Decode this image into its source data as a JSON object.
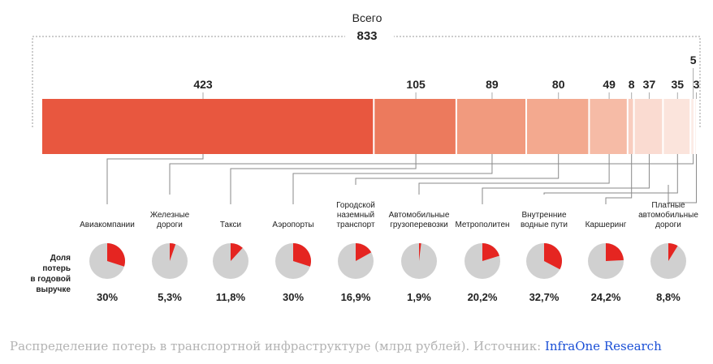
{
  "chart_data": {
    "type": "bar",
    "subtype": "stacked-horizontal-with-pies",
    "total_label": "Всего",
    "total_value": 833,
    "categories": [
      "Авиакомпании",
      "Железные дороги",
      "Такси",
      "Аэропорты",
      "Городской наземный транспорт",
      "Автомобильные грузоперевозки",
      "Метрополитен",
      "Внутренние водные пути",
      "Каршеринг",
      "Платные автомобильные дороги"
    ],
    "category_lines": [
      [
        "Авиакомпании"
      ],
      [
        "Железные",
        "дороги"
      ],
      [
        "Такси"
      ],
      [
        "Аэропорты"
      ],
      [
        "Городской",
        "наземный",
        "транспорт"
      ],
      [
        "Автомобильные",
        "грузоперевозки"
      ],
      [
        "Метрополитен"
      ],
      [
        "Внутренние",
        "водные пути"
      ],
      [
        "Каршеринг"
      ],
      [
        "Платные",
        "автомобильные",
        "дороги"
      ]
    ],
    "bar_order": [
      "Авиакомпании",
      "Такси",
      "Аэропорты",
      "Городской наземный транспорт",
      "Автомобильные грузоперевозки",
      "Каршеринг",
      "Метрополитен",
      "Внутренние водные пути",
      "Железные дороги",
      "Платные автомобильные дороги"
    ],
    "values_bn_rub": [
      423,
      5,
      105,
      89,
      80,
      49,
      37,
      35,
      8,
      3
    ],
    "share_label_lines": [
      "Доля",
      "потерь",
      "в годовой",
      "выручке"
    ],
    "shares": [
      30,
      5.3,
      11.8,
      30,
      16.9,
      1.9,
      20.2,
      32.7,
      24.2,
      8.8
    ],
    "share_labels": [
      "30%",
      "5,3%",
      "11,8%",
      "30%",
      "16,9%",
      "1,9%",
      "20,2%",
      "32,7%",
      "24,2%",
      "8,8%"
    ],
    "bar_colors": [
      "#e8573f",
      "#ec7a5d",
      "#f19a7e",
      "#f3a98f",
      "#f6bba6",
      "#f8cdbf",
      "#fadbd1",
      "#fbe4dc",
      "#fcebe6",
      "#fdf1ed"
    ],
    "pie_fill": "#e52521",
    "pie_bg": "#d0d0d0"
  },
  "caption": {
    "text": "Распределение потерь в транспортной инфраструктуре (млрд рублей). Источник: ",
    "source": "InfraOne Research"
  }
}
